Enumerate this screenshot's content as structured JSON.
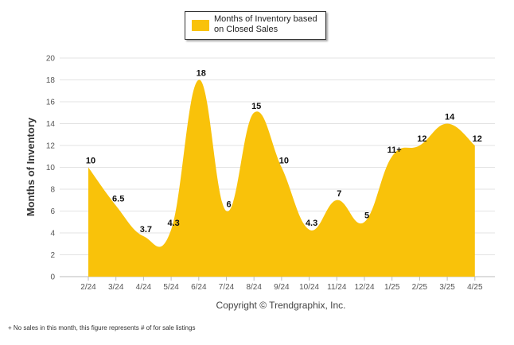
{
  "chart_data": {
    "type": "area",
    "ylabel": "Months of Inventory",
    "xlabel": "",
    "ylim": [
      0,
      20
    ],
    "yticks": [
      0,
      2,
      4,
      6,
      8,
      10,
      12,
      14,
      16,
      18,
      20
    ],
    "grid": true,
    "legend_placement": "top-center",
    "categories": [
      "2/24",
      "3/24",
      "4/24",
      "5/24",
      "6/24",
      "7/24",
      "8/24",
      "9/24",
      "10/24",
      "11/24",
      "12/24",
      "1/25",
      "2/25",
      "3/25",
      "4/25"
    ],
    "series": [
      {
        "name": "Months of Inventory based on Closed Sales",
        "values": [
          10,
          6.5,
          3.7,
          4.3,
          18,
          6,
          15,
          10,
          4.3,
          7,
          5,
          11,
          12,
          14,
          12
        ],
        "labels": [
          "10",
          "6.5",
          "3.7",
          "4.3",
          "18",
          "6",
          "15",
          "10",
          "4.3",
          "7",
          "5",
          "11+",
          "12",
          "14",
          "12"
        ],
        "color": "#F9C20A"
      }
    ]
  },
  "credit": "Copyright © Trendgraphix, Inc.",
  "footnote": "+ No sales in this month, this figure represents # of for sale listings"
}
